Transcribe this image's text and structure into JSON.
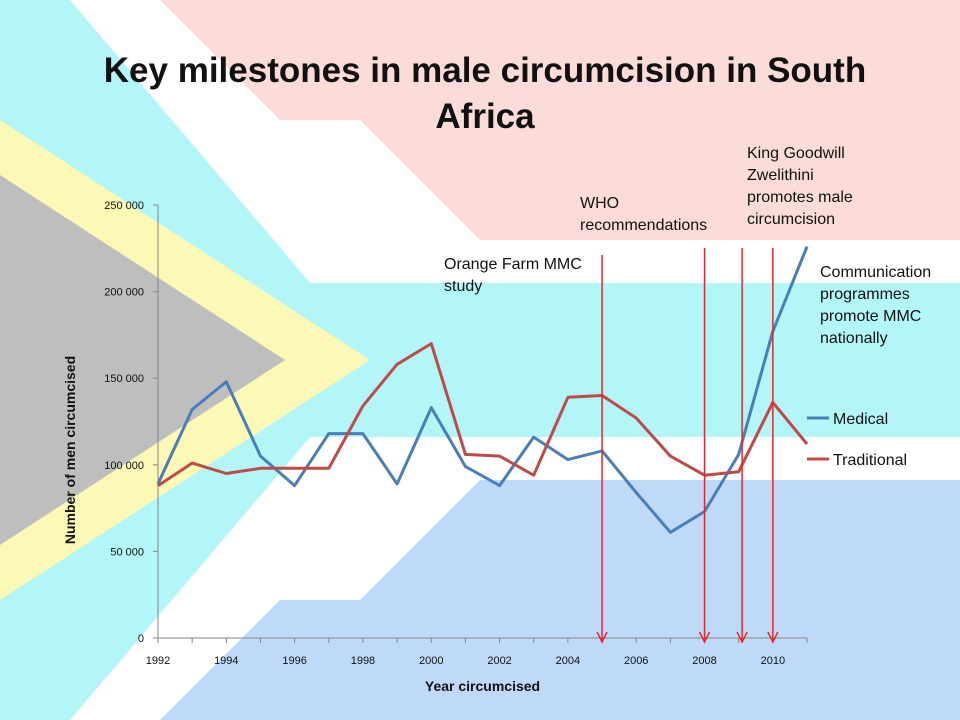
{
  "slide": {
    "title": "Key milestones in male circumcision in South Africa",
    "flag_colors": {
      "red": "#fbdcd8",
      "white": "#ffffff",
      "green": "#b3f6f8",
      "blue": "#bfdaf9",
      "gold": "#fbf9b5",
      "black": "#bebebe"
    },
    "annotations": [
      {
        "id": "orange-farm",
        "text": "Orange Farm MMC study"
      },
      {
        "id": "who",
        "text": "WHO recommendations"
      },
      {
        "id": "king",
        "text": "King Goodwill Zwelithini promotes male circumcision"
      },
      {
        "id": "communication",
        "text": "Communication programmes promote MMC nationally"
      }
    ],
    "milestone_arrow_years": [
      2005,
      2008,
      2009.1,
      2010
    ],
    "arrow_color": "#e8262a"
  },
  "chart_data": {
    "type": "line",
    "title": "Key milestones in male circumcision in South Africa",
    "xlabel": "Year circumcised",
    "ylabel": "Number of men circumcised",
    "x": [
      1992,
      1993,
      1994,
      1995,
      1996,
      1997,
      1998,
      1999,
      2000,
      2001,
      2002,
      2003,
      2004,
      2005,
      2006,
      2007,
      2008,
      2009,
      2010,
      2011
    ],
    "xlim": [
      1992,
      2011
    ],
    "xticks": [
      "1992",
      "1994",
      "1996",
      "1998",
      "2000",
      "2002",
      "2004",
      "2006",
      "2008",
      "2010"
    ],
    "ylim": [
      0,
      250000
    ],
    "yticks": [
      "0",
      "50 000",
      "100 000",
      "150 000",
      "200 000",
      "250 000"
    ],
    "grid": false,
    "legend_position": "right",
    "series": [
      {
        "name": "Medical",
        "color": "#4a7ebb",
        "values": [
          89000,
          132000,
          148000,
          105000,
          88000,
          118000,
          118000,
          89000,
          133000,
          99000,
          88000,
          116000,
          103000,
          108000,
          84000,
          61000,
          73000,
          106000,
          177000,
          226000
        ]
      },
      {
        "name": "Traditional",
        "color": "#be4b48",
        "values": [
          88000,
          101000,
          95000,
          98000,
          98000,
          98000,
          134000,
          158000,
          170000,
          106000,
          105000,
          94000,
          139000,
          140000,
          127000,
          105000,
          94000,
          96000,
          136000,
          112000
        ]
      }
    ]
  }
}
